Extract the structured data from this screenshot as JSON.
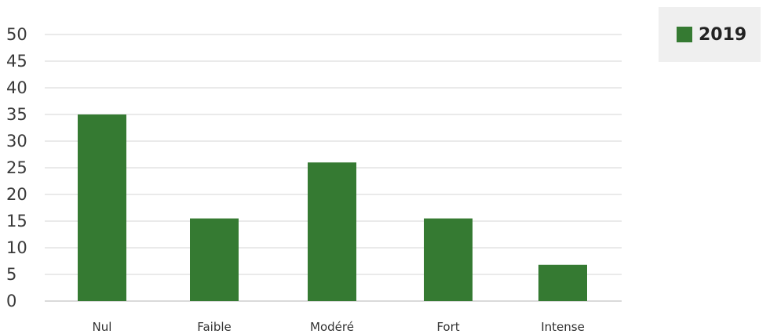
{
  "colors": {
    "bar": "#357a32",
    "grid": "#d6d6d6",
    "legend_bg": "#efefef"
  },
  "chart_data": {
    "type": "bar",
    "categories": [
      "Nul",
      "Faible",
      "Modéré",
      "Fort",
      "Intense"
    ],
    "series": [
      {
        "name": "2019",
        "values": [
          35,
          15.5,
          26,
          15.5,
          6.8
        ]
      }
    ],
    "yticks": [
      "0",
      "5",
      "10",
      "15",
      "20",
      "25",
      "30",
      "35",
      "40",
      "45",
      "50"
    ],
    "ylim": [
      0,
      50
    ],
    "grid": true,
    "legend": {
      "placement": "top-right",
      "label": "2019"
    }
  }
}
